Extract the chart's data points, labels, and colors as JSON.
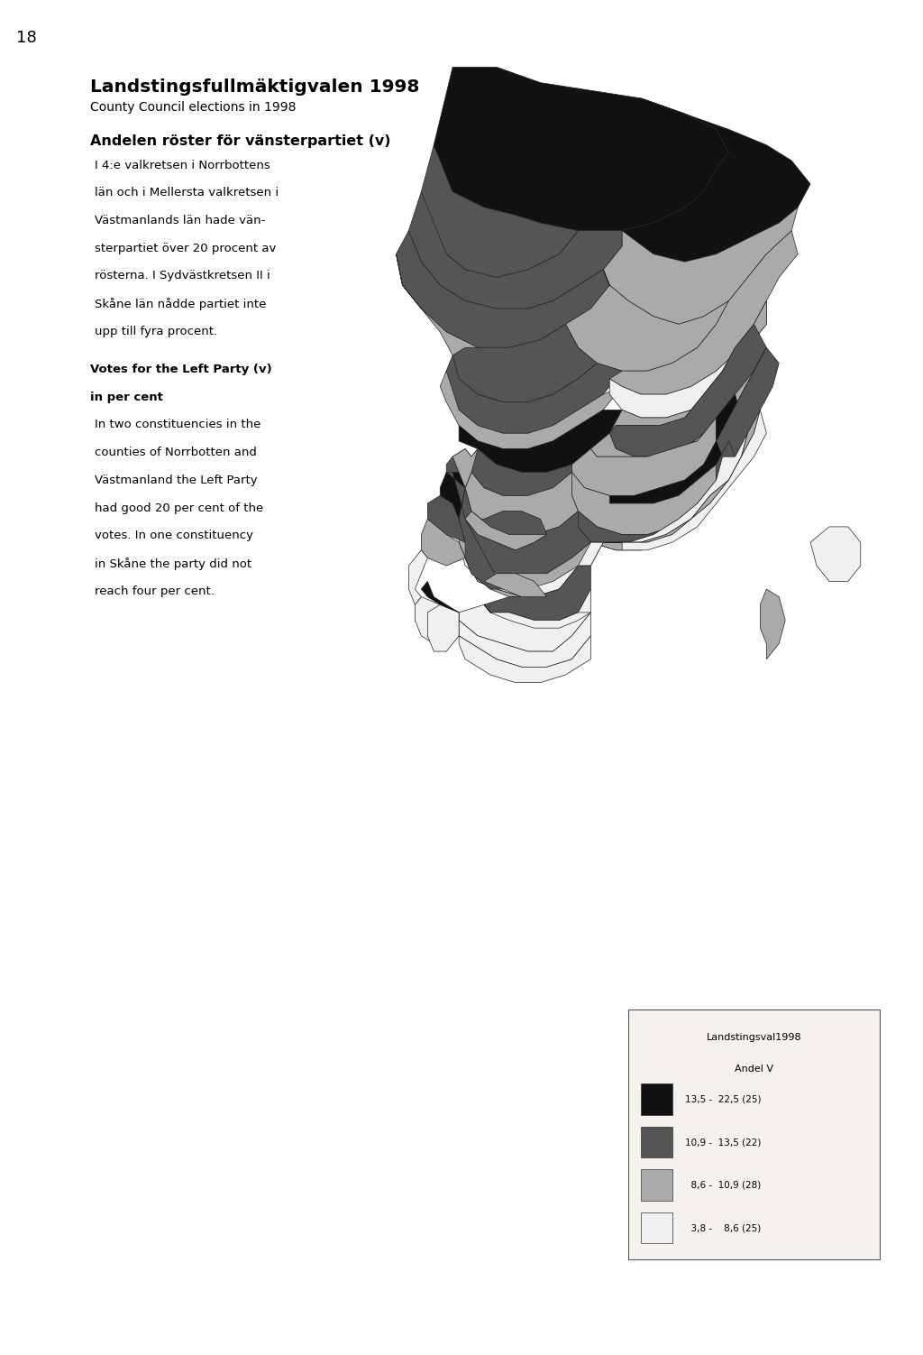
{
  "page_number": "18",
  "title_bold": "Landstingsfullmäktigvalen 1998",
  "title_sub": "County Council elections in 1998",
  "section_header": "Andelen röster för vänsterpartiet (v)",
  "swedish_text_lines": [
    "I 4:e valkretsen i Norrbottens",
    "län och i Mellersta valkretsen i",
    "Västmanlands län hade vän-",
    "sterpartiet över 20 procent av",
    "rösterna. I Sydvästkretsen II i",
    "Skåne län nådde partiet inte",
    "upp till fyra procent."
  ],
  "english_header1": "Votes for the Left Party (v)",
  "english_header2": "in per cent",
  "english_text_lines": [
    "In two constituencies in the",
    "counties of Norrbotten and",
    "Västmanland the Left Party",
    "had good 20 per cent of the",
    "votes. In one constituency",
    "in Skåne the party did not",
    "reach four per cent."
  ],
  "legend_title1": "Landstingsval1998",
  "legend_title2": "Andel V",
  "legend_entries": [
    {
      "color": "#111111",
      "label": "13,5 -  22,5 (25)"
    },
    {
      "color": "#555555",
      "label": "10,9 -  13,5 (22)"
    },
    {
      "color": "#aaaaaa",
      "label": "  8,6 -  10,9 (28)"
    },
    {
      "color": "#f0f0f0",
      "label": "  3,8 -    8,6 (25)"
    }
  ],
  "bg_color": "#cdc9c0",
  "page_bg": "#ffffff",
  "legend_bg": "#f5f2ee"
}
